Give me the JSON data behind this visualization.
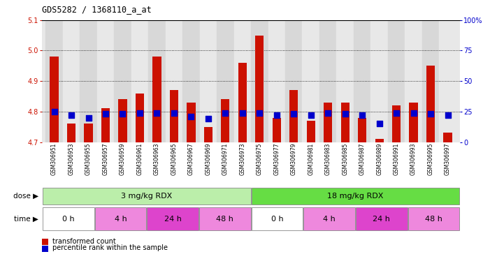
{
  "title": "GDS5282 / 1368110_a_at",
  "samples": [
    "GSM306951",
    "GSM306953",
    "GSM306955",
    "GSM306957",
    "GSM306959",
    "GSM306961",
    "GSM306963",
    "GSM306965",
    "GSM306967",
    "GSM306969",
    "GSM306971",
    "GSM306973",
    "GSM306975",
    "GSM306977",
    "GSM306979",
    "GSM306981",
    "GSM306983",
    "GSM306985",
    "GSM306987",
    "GSM306989",
    "GSM306991",
    "GSM306993",
    "GSM306995",
    "GSM306997"
  ],
  "transformed_count": [
    4.98,
    4.76,
    4.76,
    4.81,
    4.84,
    4.86,
    4.98,
    4.87,
    4.83,
    4.75,
    4.84,
    4.96,
    5.05,
    4.78,
    4.87,
    4.77,
    4.83,
    4.83,
    4.78,
    4.71,
    4.82,
    4.83,
    4.95,
    4.73
  ],
  "percentile_rank": [
    25,
    22,
    20,
    23,
    23,
    24,
    24,
    24,
    21,
    19,
    24,
    24,
    24,
    22,
    23,
    22,
    24,
    23,
    22,
    15,
    24,
    24,
    23,
    22
  ],
  "ylim_left": [
    4.7,
    5.1
  ],
  "ylim_right": [
    0,
    100
  ],
  "yticks_left": [
    4.7,
    4.8,
    4.9,
    5.0,
    5.1
  ],
  "yticks_right": [
    0,
    25,
    50,
    75,
    100
  ],
  "ytick_labels_right": [
    "0",
    "25",
    "50",
    "75",
    "100%"
  ],
  "bar_color": "#cc1100",
  "dot_color": "#0000cc",
  "baseline": 4.7,
  "dose_groups": [
    {
      "label": "3 mg/kg RDX",
      "start": 0,
      "end": 12,
      "color": "#bbeeaa"
    },
    {
      "label": "18 mg/kg RDX",
      "start": 12,
      "end": 24,
      "color": "#66dd44"
    }
  ],
  "time_groups": [
    {
      "label": "0 h",
      "start": 0,
      "end": 3,
      "color": "#ffffff"
    },
    {
      "label": "4 h",
      "start": 3,
      "end": 6,
      "color": "#ee88dd"
    },
    {
      "label": "24 h",
      "start": 6,
      "end": 9,
      "color": "#dd44cc"
    },
    {
      "label": "48 h",
      "start": 9,
      "end": 12,
      "color": "#ee88dd"
    },
    {
      "label": "0 h",
      "start": 12,
      "end": 15,
      "color": "#ffffff"
    },
    {
      "label": "4 h",
      "start": 15,
      "end": 18,
      "color": "#ee88dd"
    },
    {
      "label": "24 h",
      "start": 18,
      "end": 21,
      "color": "#dd44cc"
    },
    {
      "label": "48 h",
      "start": 21,
      "end": 24,
      "color": "#ee88dd"
    }
  ],
  "dot_size": 28,
  "background_color": "#ffffff",
  "plot_bg_color": "#e8e8e8",
  "bar_bg_even": "#d8d8d8",
  "bar_bg_odd": "#e8e8e8",
  "tick_label_color_left": "#cc1100",
  "tick_label_color_right": "#0000cc",
  "grid_yticks": [
    4.8,
    4.9,
    5.0
  ]
}
